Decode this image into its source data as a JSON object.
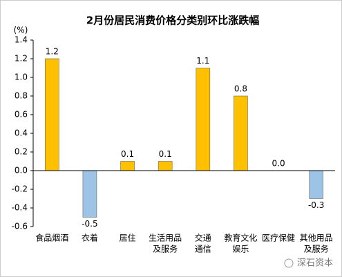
{
  "chart_data": {
    "type": "bar",
    "title": "2月份居民消费价格分类别环比涨跌幅",
    "y_unit": "(%)",
    "categories": [
      [
        "食品烟酒"
      ],
      [
        "衣着"
      ],
      [
        "居住"
      ],
      [
        "生活用品",
        "及服务"
      ],
      [
        "交通",
        "通信"
      ],
      [
        "教育文化",
        "娱乐"
      ],
      [
        "医疗保健"
      ],
      [
        "其他用品",
        "及服务"
      ]
    ],
    "values": [
      1.2,
      -0.5,
      0.1,
      0.1,
      1.1,
      0.8,
      0.0,
      -0.3
    ],
    "value_labels": [
      "1.2",
      "-0.5",
      "0.1",
      "0.1",
      "1.1",
      "0.8",
      "0.0",
      "-0.3"
    ],
    "positive_color": "#ffc000",
    "negative_color": "#9dc3e6",
    "ylim": [
      -0.6,
      1.4
    ],
    "yticks": [
      -0.6,
      -0.4,
      -0.2,
      {
        "value": 0,
        "label": "0.0"
      },
      0.2,
      0.4,
      0.6,
      0.8,
      {
        "value": 1,
        "label": "1.0"
      },
      1.2,
      1.4
    ],
    "grid": false,
    "watermark": "深石资本"
  }
}
